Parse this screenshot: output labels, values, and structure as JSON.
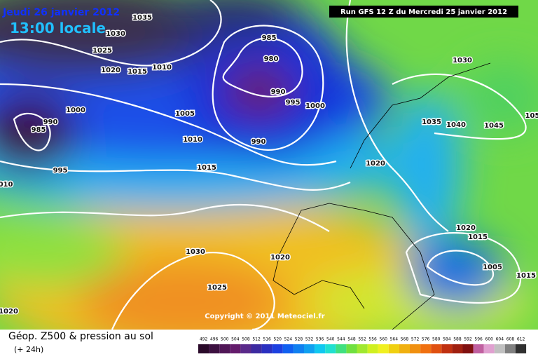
{
  "header": {
    "date": "Jeudi 26 janvier 2012",
    "time": "13:00 locale",
    "run": "Run GFS 12 Z du Mercredi 25 janvier 2012",
    "copyright": "Copyright © 2011 Meteociel.fr"
  },
  "footer": {
    "title": "Géop. Z500 & pression au sol",
    "lead": "(+ 24h)"
  },
  "isobar_labels": [
    "1035",
    "1030",
    "1025",
    "1020",
    "1015",
    "1010",
    "985",
    "980",
    "990",
    "995",
    "1000",
    "990",
    "1005",
    "1010",
    "1015",
    "1000",
    "990",
    "985",
    "995",
    "010",
    "1030",
    "1025",
    "1020",
    "1020",
    "1035",
    "1040",
    "1045",
    "1030",
    "1020",
    "1020",
    "1015",
    "1005",
    "1015",
    "105"
  ],
  "scale": {
    "values": [
      492,
      496,
      500,
      504,
      508,
      512,
      516,
      520,
      524,
      528,
      532,
      536,
      540,
      544,
      548,
      552,
      556,
      560,
      564,
      568,
      572,
      576,
      580,
      584,
      588,
      592,
      596,
      600,
      604,
      608,
      612
    ],
    "colors": [
      "#2a0a2a",
      "#3c1040",
      "#501656",
      "#641c6c",
      "#5a2a8a",
      "#3c2aa0",
      "#2a30c0",
      "#1c40e0",
      "#1060f0",
      "#1080f0",
      "#10a0f0",
      "#10c8f0",
      "#20e0d0",
      "#40e080",
      "#70e040",
      "#a0e830",
      "#d0f020",
      "#f0f020",
      "#f0d010",
      "#f0b010",
      "#f09010",
      "#f07010",
      "#e05010",
      "#c03010",
      "#a02010",
      "#801010",
      "#c060a0",
      "#e0a0d0",
      "#c0c0c0",
      "#808080",
      "#303030"
    ]
  }
}
